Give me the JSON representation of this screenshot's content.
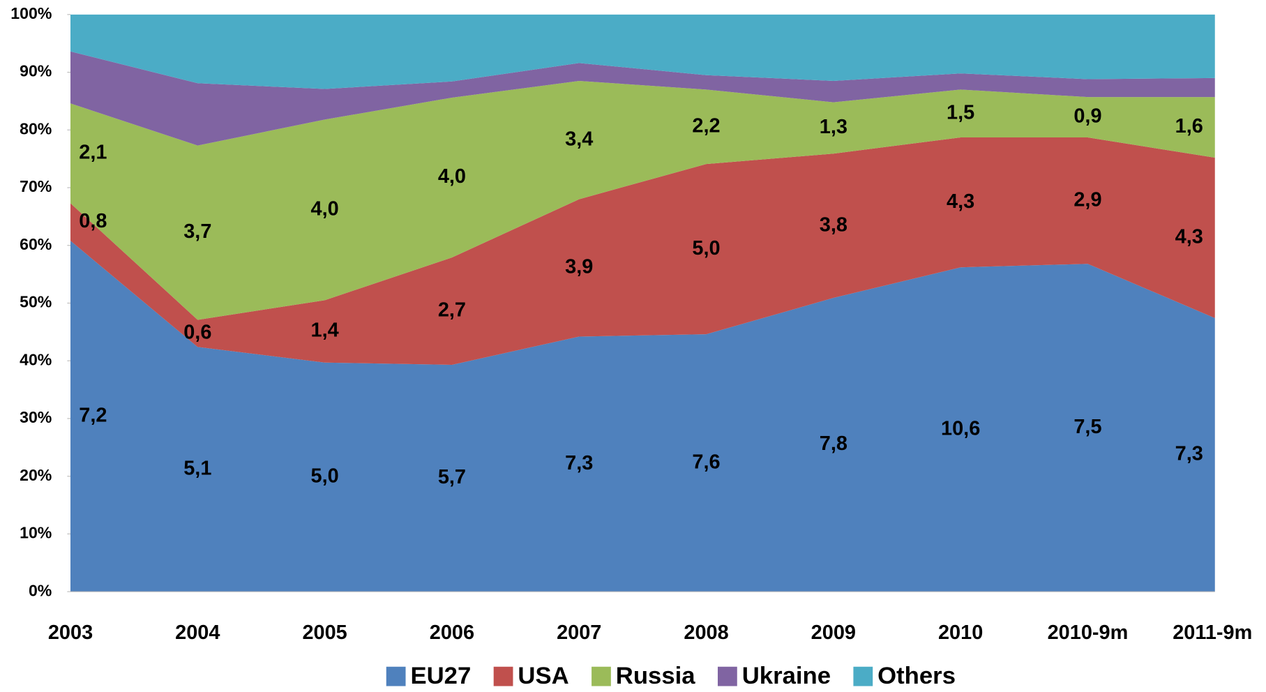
{
  "chart_data": {
    "type": "area",
    "stacked": "percent",
    "categories": [
      "2003",
      "2004",
      "2005",
      "2006",
      "2007",
      "2008",
      "2009",
      "2010",
      "2010-9m",
      "2011-9m"
    ],
    "series": [
      {
        "name": "EU27",
        "color": "#4f81bd",
        "values": [
          60.8,
          42.4,
          39.7,
          39.3,
          44.2,
          44.6,
          50.9,
          56.2,
          56.8,
          47.4
        ],
        "labels": [
          "7,2",
          "5,1",
          "5,0",
          "5,7",
          "7,3",
          "7,6",
          "7,8",
          "10,6",
          "7,5",
          "7,3"
        ]
      },
      {
        "name": "USA",
        "color": "#c0504d",
        "values": [
          6.5,
          4.7,
          10.8,
          18.6,
          23.8,
          29.5,
          25.0,
          22.5,
          21.9,
          27.8
        ],
        "labels": [
          "0,8",
          "0,6",
          "1,4",
          "2,7",
          "3,9",
          "5,0",
          "3,8",
          "4,3",
          "2,9",
          "4,3"
        ]
      },
      {
        "name": "Russia",
        "color": "#9bbb59",
        "values": [
          17.3,
          30.2,
          31.3,
          27.7,
          20.5,
          12.9,
          8.9,
          8.3,
          7.0,
          10.5
        ],
        "labels": [
          "2,1",
          "3,7",
          "4,0",
          "4,0",
          "3,4",
          "2,2",
          "1,3",
          "1,5",
          "0,9",
          "1,6"
        ]
      },
      {
        "name": "Ukraine",
        "color": "#8064a2",
        "values": [
          9.0,
          10.8,
          5.3,
          2.8,
          3.1,
          2.5,
          3.7,
          2.8,
          3.1,
          3.3
        ]
      },
      {
        "name": "Others",
        "color": "#4bacc6",
        "values": [
          6.4,
          11.9,
          12.9,
          11.6,
          8.4,
          10.5,
          11.5,
          10.2,
          11.2,
          11.0
        ]
      }
    ],
    "ylim": [
      0,
      100
    ],
    "yticks": [
      {
        "value": 0,
        "label": "0%"
      },
      {
        "value": 10,
        "label": "10%"
      },
      {
        "value": 20,
        "label": "20%"
      },
      {
        "value": 30,
        "label": "30%"
      },
      {
        "value": 40,
        "label": "40%"
      },
      {
        "value": 50,
        "label": "50%"
      },
      {
        "value": 60,
        "label": "60%"
      },
      {
        "value": 70,
        "label": "70%"
      },
      {
        "value": 80,
        "label": "80%"
      },
      {
        "value": 90,
        "label": "90%"
      },
      {
        "value": 100,
        "label": "100%"
      }
    ],
    "legend": "bottom"
  }
}
